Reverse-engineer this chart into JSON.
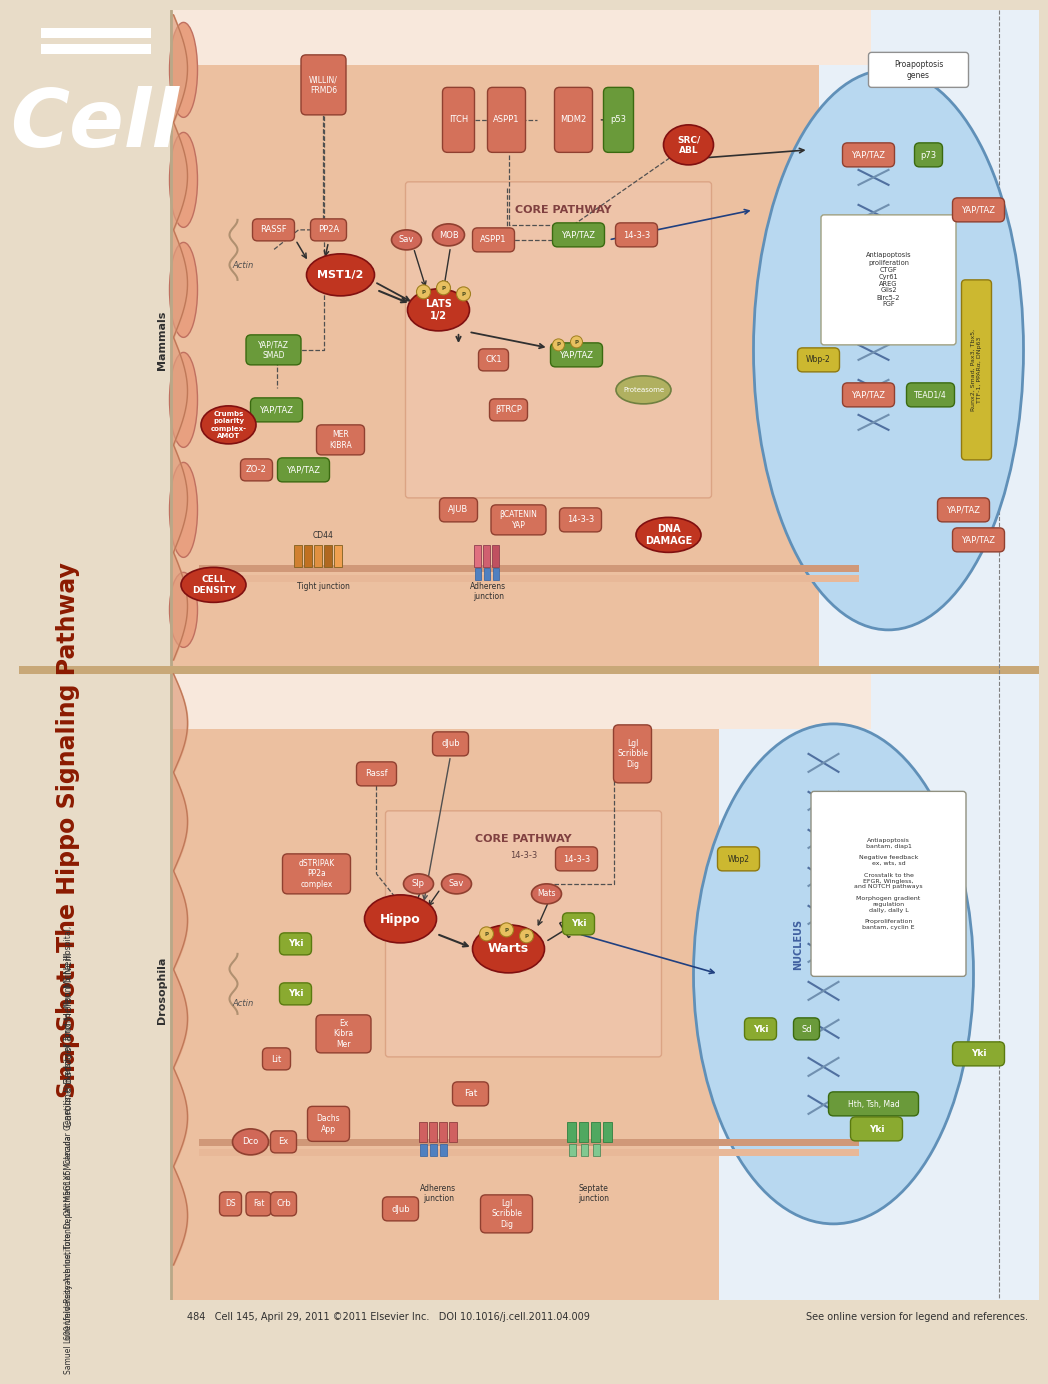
{
  "title": "SnapShot: The Hippo Signaling Pathway",
  "subtitle_line1": "Caroline Badouel and Helen McNeill",
  "subtitle_line2": "Samuel Lunenfeld Research Institute, Department of Molecular Genetics, University of Toronto, Mount Sinai Hospital,",
  "subtitle_line3": "600 University Avenue, Toronto, ON M5G1X5, Canada",
  "footer_left": "484   Cell 145, April 29, 2011 ©2011 Elsevier Inc.   DOI 10.1016/j.cell.2011.04.009",
  "footer_right": "See online version for legend and references.",
  "sidebar_bg": "#e8dcc8",
  "title_color": "#8b1a00",
  "salmon_box": "#d4715a",
  "dark_red_oval": "#c03520",
  "green_box": "#6a9a3a",
  "olive_box": "#8aaa30",
  "yellow_box": "#ccb830",
  "nucleus_fill": "#a8cce0",
  "nucleus_edge": "#5090b8",
  "mammals_bg": "#e8b898",
  "droso_bg": "#e8b898",
  "core_box_bg": "#f0dcc8",
  "white_box": "#ffffff",
  "cream_box": "#f8f0d8",
  "separator": "#c8b090"
}
